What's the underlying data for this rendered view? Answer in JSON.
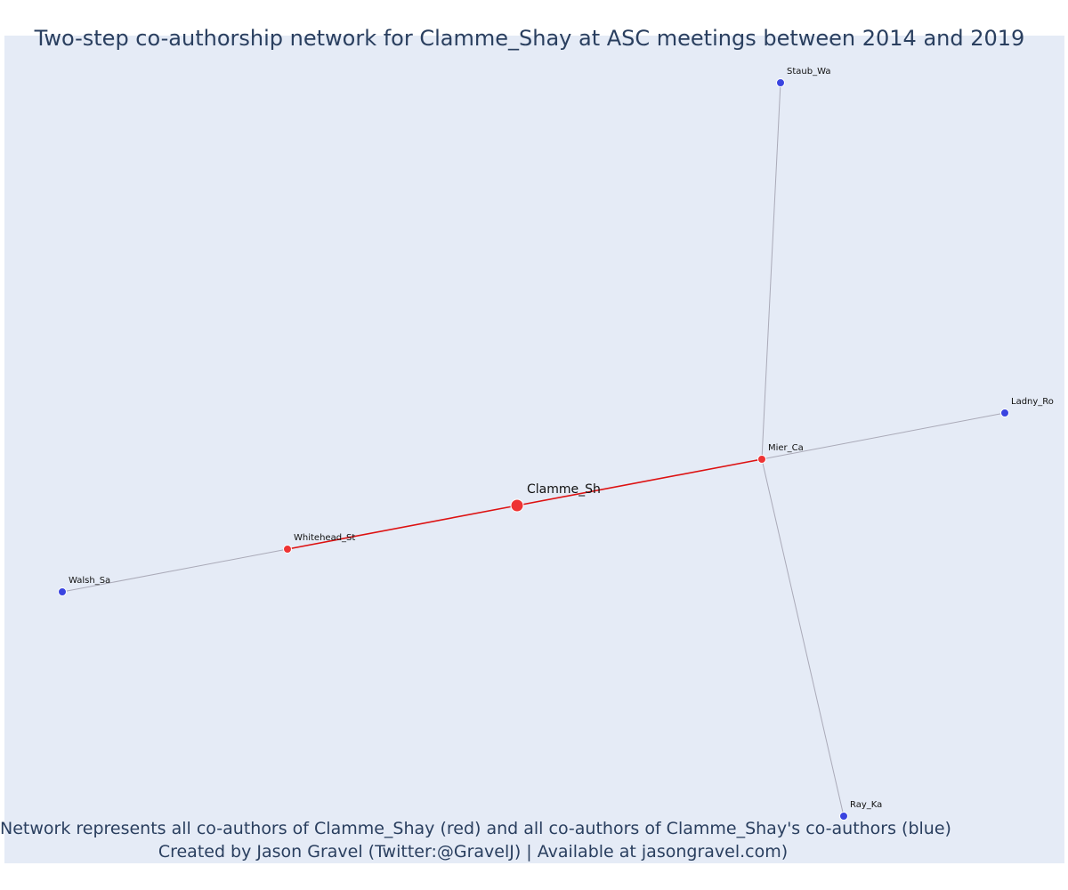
{
  "title": "Two-step co-authorship network for Clamme_Shay at ASC meetings between 2014 and 2019",
  "footer": {
    "line1": "Network represents all co-authors of Clamme_Shay (red) and all co-authors of Clamme_Shay's co-authors (blue)",
    "line2": "Created by Jason Gravel (Twitter:@GravelJ) | Available at jasongravel.com)"
  },
  "colors": {
    "background": "#e5ebf6",
    "ego": "#ee3333",
    "first_step": "#ee3333",
    "second_step": "#3a44e0",
    "ego_edge": "#dd1111",
    "other_edge": "#aaaab8"
  },
  "network": {
    "nodes": [
      {
        "id": "Clamme_Sh",
        "label": "Clamme_Sh",
        "group": "ego"
      },
      {
        "id": "Mier_Ca",
        "label": "Mier_Ca",
        "group": "first_step"
      },
      {
        "id": "Whitehead_St",
        "label": "Whitehead_St",
        "group": "first_step"
      },
      {
        "id": "Staub_Wa",
        "label": "Staub_Wa",
        "group": "second_step"
      },
      {
        "id": "Ladny_Ro",
        "label": "Ladny_Ro",
        "group": "second_step"
      },
      {
        "id": "Ray_Ka",
        "label": "Ray_Ka",
        "group": "second_step"
      },
      {
        "id": "Walsh_Sa",
        "label": "Walsh_Sa",
        "group": "second_step"
      }
    ],
    "edges": [
      {
        "source": "Clamme_Sh",
        "target": "Mier_Ca",
        "type": "ego"
      },
      {
        "source": "Clamme_Sh",
        "target": "Whitehead_St",
        "type": "ego"
      },
      {
        "source": "Mier_Ca",
        "target": "Staub_Wa",
        "type": "other"
      },
      {
        "source": "Mier_Ca",
        "target": "Ladny_Ro",
        "type": "other"
      },
      {
        "source": "Mier_Ca",
        "target": "Ray_Ka",
        "type": "other"
      },
      {
        "source": "Whitehead_St",
        "target": "Walsh_Sa",
        "type": "other"
      }
    ]
  }
}
